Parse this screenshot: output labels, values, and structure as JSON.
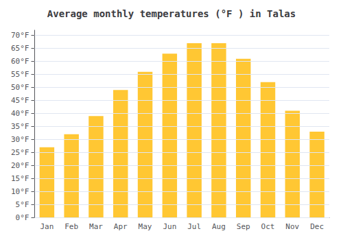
{
  "chart_data": {
    "type": "bar",
    "title": "Average monthly temperatures (°F ) in Talas",
    "categories": [
      "Jan",
      "Feb",
      "Mar",
      "Apr",
      "May",
      "Jun",
      "Jul",
      "Aug",
      "Sep",
      "Oct",
      "Nov",
      "Dec"
    ],
    "values": [
      27,
      32,
      39,
      49,
      56,
      63,
      67,
      67,
      61,
      52,
      41,
      33
    ],
    "color": "#FFC733",
    "ylim": [
      0,
      72
    ],
    "yticks": [
      {
        "value": 0,
        "label": "0°F"
      },
      {
        "value": 5,
        "label": "5°F"
      },
      {
        "value": 10,
        "label": "10°F"
      },
      {
        "value": 15,
        "label": "15°F"
      },
      {
        "value": 20,
        "label": "20°F"
      },
      {
        "value": 25,
        "label": "25°F"
      },
      {
        "value": 30,
        "label": "30°F"
      },
      {
        "value": 35,
        "label": "35°F"
      },
      {
        "value": 40,
        "label": "40°F"
      },
      {
        "value": 45,
        "label": "45°F"
      },
      {
        "value": 50,
        "label": "50°F"
      },
      {
        "value": 55,
        "label": "55°F"
      },
      {
        "value": 60,
        "label": "60°F"
      },
      {
        "value": 65,
        "label": "65°F"
      },
      {
        "value": 70,
        "label": "70°F"
      }
    ],
    "grid": true
  }
}
